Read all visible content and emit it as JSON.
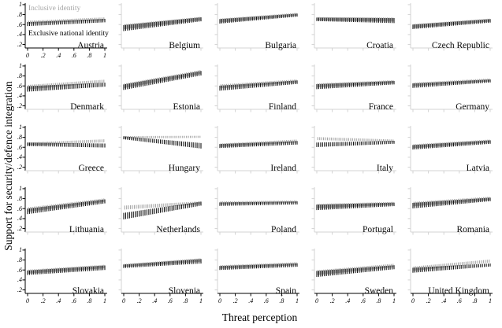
{
  "figure": {
    "y_axis_title": "Support for security/defence integration",
    "x_axis_title": "Threat perception",
    "legend": {
      "inclusive_label": "Inclusive identity",
      "exclusive_label": "Exclusive national identity"
    }
  },
  "chart_data": {
    "type": "line",
    "subtype": "small-multiples marginsplot, linear fit with vertical confidence-interval spikes",
    "grid_layout": "5 columns x 5 rows",
    "title": "",
    "xlabel": "Threat perception",
    "ylabel": "Support for security/defence integration",
    "xlim": [
      0,
      1
    ],
    "ylim": [
      0.2,
      1
    ],
    "x_ticks": [
      0,
      0.2,
      0.4,
      0.6,
      0.8,
      1
    ],
    "x_tick_labels": [
      "0",
      ".2",
      ".4",
      ".6",
      ".8",
      "1"
    ],
    "y_ticks": [
      0.2,
      0.4,
      0.6,
      0.8,
      1
    ],
    "y_tick_labels": [
      ".2",
      ".4",
      ".6",
      ".8",
      "1"
    ],
    "grid": false,
    "legend_position": "inside first panel (Austria)",
    "series_names": [
      "Inclusive identity",
      "Exclusive national identity"
    ],
    "colors": {
      "inclusive_series": "#a6a6a6",
      "exclusive_series": "#141414",
      "labeled_axis": "#000000",
      "unlabeled_axis": "#d3d3d3",
      "legend_inclusive_text": "#a6a6a6",
      "legend_exclusive_text": "#000000"
    },
    "note": "Each panel: predicted support at threat perception 0 to 1; y = [value at x=0, value at x=1], ci = [half-width of CI spike at x=0, at x=1], linear interpolation between endpoints",
    "panels": [
      {
        "country": "Austria",
        "inclusive": {
          "y": [
            0.645,
            0.715
          ],
          "ci": [
            0.03,
            0.03
          ]
        },
        "exclusive": {
          "y": [
            0.61,
            0.68
          ],
          "ci": [
            0.04,
            0.035
          ]
        }
      },
      {
        "country": "Belgium",
        "inclusive": {
          "y": [
            0.555,
            0.72
          ],
          "ci": [
            0.05,
            0.035
          ]
        },
        "exclusive": {
          "y": [
            0.53,
            0.705
          ],
          "ci": [
            0.06,
            0.04
          ]
        }
      },
      {
        "country": "Bulgaria",
        "inclusive": {
          "y": [
            0.68,
            0.805
          ],
          "ci": [
            0.04,
            0.03
          ]
        },
        "exclusive": {
          "y": [
            0.665,
            0.79
          ],
          "ci": [
            0.045,
            0.03
          ]
        }
      },
      {
        "country": "Croatia",
        "inclusive": {
          "y": [
            0.715,
            0.7
          ],
          "ci": [
            0.035,
            0.04
          ]
        },
        "exclusive": {
          "y": [
            0.705,
            0.68
          ],
          "ci": [
            0.035,
            0.05
          ]
        }
      },
      {
        "country": "Czech Republic",
        "inclusive": {
          "y": [
            0.57,
            0.69
          ],
          "ci": [
            0.04,
            0.03
          ]
        },
        "exclusive": {
          "y": [
            0.555,
            0.675
          ],
          "ci": [
            0.045,
            0.035
          ]
        }
      },
      {
        "country": "Denmark",
        "inclusive": {
          "y": [
            0.575,
            0.695
          ],
          "ci": [
            0.045,
            0.03
          ]
        },
        "exclusive": {
          "y": [
            0.54,
            0.625
          ],
          "ci": [
            0.055,
            0.04
          ]
        }
      },
      {
        "country": "Estonia",
        "inclusive": {
          "y": [
            0.6,
            0.88
          ],
          "ci": [
            0.045,
            0.04
          ]
        },
        "exclusive": {
          "y": [
            0.575,
            0.855
          ],
          "ci": [
            0.055,
            0.045
          ]
        }
      },
      {
        "country": "Finland",
        "inclusive": {
          "y": [
            0.59,
            0.7
          ],
          "ci": [
            0.04,
            0.03
          ]
        },
        "exclusive": {
          "y": [
            0.555,
            0.675
          ],
          "ci": [
            0.05,
            0.035
          ]
        }
      },
      {
        "country": "France",
        "inclusive": {
          "y": [
            0.61,
            0.685
          ],
          "ci": [
            0.04,
            0.03
          ]
        },
        "exclusive": {
          "y": [
            0.585,
            0.665
          ],
          "ci": [
            0.05,
            0.035
          ]
        }
      },
      {
        "country": "Germany",
        "inclusive": {
          "y": [
            0.63,
            0.72
          ],
          "ci": [
            0.035,
            0.03
          ]
        },
        "exclusive": {
          "y": [
            0.605,
            0.7
          ],
          "ci": [
            0.045,
            0.03
          ]
        }
      },
      {
        "country": "Greece",
        "inclusive": {
          "y": [
            0.665,
            0.73
          ],
          "ci": [
            0.03,
            0.03
          ]
        },
        "exclusive": {
          "y": [
            0.66,
            0.635
          ],
          "ci": [
            0.035,
            0.04
          ]
        }
      },
      {
        "country": "Hungary",
        "inclusive": {
          "y": [
            0.8,
            0.81
          ],
          "ci": [
            0.025,
            0.02
          ]
        },
        "exclusive": {
          "y": [
            0.79,
            0.63
          ],
          "ci": [
            0.03,
            0.055
          ]
        }
      },
      {
        "country": "Ireland",
        "inclusive": {
          "y": [
            0.64,
            0.725
          ],
          "ci": [
            0.035,
            0.03
          ]
        },
        "exclusive": {
          "y": [
            0.625,
            0.69
          ],
          "ci": [
            0.04,
            0.035
          ]
        }
      },
      {
        "country": "Italy",
        "inclusive": {
          "y": [
            0.775,
            0.73
          ],
          "ci": [
            0.03,
            0.025
          ]
        },
        "exclusive": {
          "y": [
            0.65,
            0.7
          ],
          "ci": [
            0.045,
            0.03
          ]
        }
      },
      {
        "country": "Latvia",
        "inclusive": {
          "y": [
            0.62,
            0.725
          ],
          "ci": [
            0.04,
            0.03
          ]
        },
        "exclusive": {
          "y": [
            0.6,
            0.705
          ],
          "ci": [
            0.045,
            0.035
          ]
        }
      },
      {
        "country": "Lithuania",
        "inclusive": {
          "y": [
            0.58,
            0.77
          ],
          "ci": [
            0.045,
            0.035
          ]
        },
        "exclusive": {
          "y": [
            0.545,
            0.745
          ],
          "ci": [
            0.055,
            0.04
          ]
        }
      },
      {
        "country": "Netherlands",
        "inclusive": {
          "y": [
            0.62,
            0.715
          ],
          "ci": [
            0.04,
            0.03
          ]
        },
        "exclusive": {
          "y": [
            0.45,
            0.7
          ],
          "ci": [
            0.065,
            0.04
          ]
        }
      },
      {
        "country": "Poland",
        "inclusive": {
          "y": [
            0.715,
            0.74
          ],
          "ci": [
            0.03,
            0.025
          ]
        },
        "exclusive": {
          "y": [
            0.69,
            0.715
          ],
          "ci": [
            0.035,
            0.03
          ]
        }
      },
      {
        "country": "Portugal",
        "inclusive": {
          "y": [
            0.65,
            0.705
          ],
          "ci": [
            0.045,
            0.03
          ]
        },
        "exclusive": {
          "y": [
            0.625,
            0.685
          ],
          "ci": [
            0.055,
            0.035
          ]
        }
      },
      {
        "country": "Romania",
        "inclusive": {
          "y": [
            0.69,
            0.805
          ],
          "ci": [
            0.045,
            0.035
          ]
        },
        "exclusive": {
          "y": [
            0.66,
            0.785
          ],
          "ci": [
            0.055,
            0.035
          ]
        }
      },
      {
        "country": "Slovakia",
        "inclusive": {
          "y": [
            0.565,
            0.67
          ],
          "ci": [
            0.04,
            0.035
          ]
        },
        "exclusive": {
          "y": [
            0.545,
            0.645
          ],
          "ci": [
            0.045,
            0.045
          ]
        }
      },
      {
        "country": "Slovenia",
        "inclusive": {
          "y": [
            0.69,
            0.8
          ],
          "ci": [
            0.03,
            0.035
          ]
        },
        "exclusive": {
          "y": [
            0.675,
            0.775
          ],
          "ci": [
            0.035,
            0.045
          ]
        }
      },
      {
        "country": "Spain",
        "inclusive": {
          "y": [
            0.66,
            0.725
          ],
          "ci": [
            0.035,
            0.03
          ]
        },
        "exclusive": {
          "y": [
            0.64,
            0.7
          ],
          "ci": [
            0.04,
            0.035
          ]
        }
      },
      {
        "country": "Sweden",
        "inclusive": {
          "y": [
            0.545,
            0.69
          ],
          "ci": [
            0.05,
            0.035
          ]
        },
        "exclusive": {
          "y": [
            0.52,
            0.655
          ],
          "ci": [
            0.06,
            0.04
          ]
        }
      },
      {
        "country": "United Kingdom",
        "inclusive": {
          "y": [
            0.625,
            0.78
          ],
          "ci": [
            0.045,
            0.03
          ]
        },
        "exclusive": {
          "y": [
            0.595,
            0.7
          ],
          "ci": [
            0.05,
            0.03
          ]
        }
      }
    ]
  }
}
